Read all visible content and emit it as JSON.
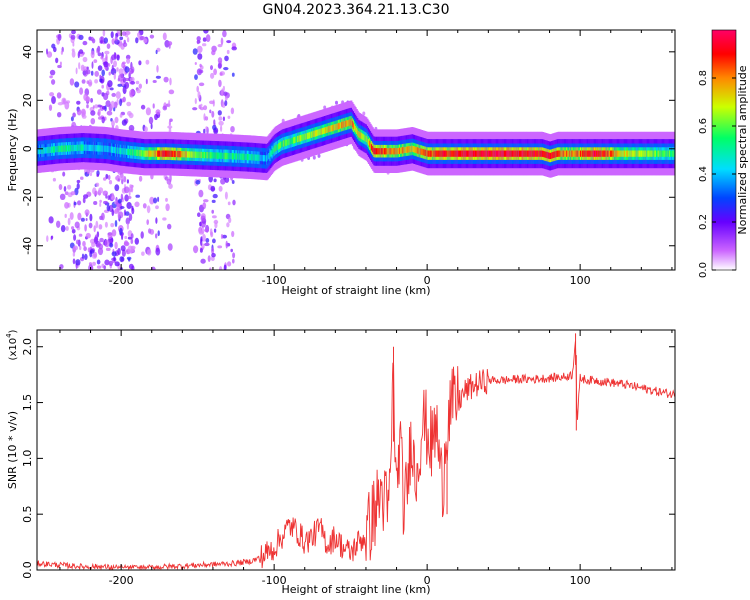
{
  "title": "GN04.2023.364.21.13.C30",
  "chart_data": [
    {
      "type": "heatmap",
      "xlabel": "Height of straight line (km)",
      "ylabel": "Frequency (Hz)",
      "xlim": [
        -255,
        162
      ],
      "ylim": [
        -50,
        49
      ],
      "xticks": [
        -200,
        -100,
        0,
        100
      ],
      "xtick_labels": [
        "-200",
        "-100",
        "0",
        "100"
      ],
      "yticks": [
        -40,
        -20,
        0,
        20,
        40
      ],
      "ytick_labels": [
        "-40",
        "-20",
        "0",
        "20",
        "40"
      ],
      "colorbar": {
        "label": "Normalized spectral amplitude",
        "range": [
          0,
          1
        ],
        "ticks": [
          0.0,
          0.2,
          0.4,
          0.6,
          0.8
        ],
        "tick_labels": [
          "0.0",
          "0.2",
          "0.4",
          "0.6",
          "0.8"
        ],
        "colors": [
          "#ffffff",
          "#cc66ff",
          "#6600ff",
          "#0044ff",
          "#00ddff",
          "#00ff66",
          "#ccff00",
          "#ff8800",
          "#ff0000",
          "#ff0066"
        ]
      },
      "ridge": {
        "x": [
          -255,
          -240,
          -225,
          -210,
          -200,
          -185,
          -170,
          -150,
          -130,
          -115,
          -105,
          -100,
          -95,
          -90,
          -80,
          -70,
          -60,
          -50,
          -45,
          -40,
          -35,
          -30,
          -20,
          -10,
          0,
          10,
          30,
          60,
          75,
          80,
          85,
          95,
          110,
          130,
          162
        ],
        "f": [
          -1,
          0,
          0.5,
          0,
          -1,
          -2,
          -2,
          -2.5,
          -3,
          -3.5,
          -4,
          0,
          2,
          3,
          5,
          7,
          9,
          11,
          6,
          4,
          -1,
          -1,
          -1,
          0,
          -2,
          -2,
          -2,
          -2,
          -2,
          -3,
          -2,
          -2,
          -2,
          -2,
          -2
        ],
        "amplitude": [
          0.4,
          0.55,
          0.45,
          0.4,
          0.45,
          0.65,
          0.95,
          0.6,
          0.55,
          0.5,
          0.4,
          0.55,
          0.6,
          0.6,
          0.65,
          0.7,
          0.75,
          0.8,
          0.7,
          0.65,
          0.95,
          0.85,
          0.8,
          0.75,
          0.85,
          0.9,
          0.95,
          0.95,
          0.9,
          0.95,
          0.85,
          0.8,
          0.95,
          0.7,
          0.55
        ]
      }
    },
    {
      "type": "line",
      "xlabel": "Height of straight line (km)",
      "ylabel": "SNR (10 * v/v)",
      "scale_label": "(x10",
      "scale_exp": "4",
      "xlim": [
        -255,
        162
      ],
      "ylim": [
        0,
        2.15
      ],
      "xticks": [
        -200,
        -100,
        0,
        100
      ],
      "xtick_labels": [
        "-200",
        "-100",
        "0",
        "100"
      ],
      "yticks": [
        0,
        0.5,
        1.0,
        1.5,
        2.0
      ],
      "ytick_labels": [
        "0.0",
        "0.5",
        "1.0",
        "1.5",
        "2.0"
      ],
      "color": "#ee3333",
      "series": [
        {
          "x": [
            -255,
            -245,
            -235,
            -225,
            -215,
            -200,
            -185,
            -170,
            -155,
            -140,
            -125,
            -115,
            -108,
            -100,
            -95,
            -90,
            -85,
            -80,
            -75,
            -70,
            -65,
            -60,
            -55,
            -50,
            -45,
            -40,
            -35,
            -30,
            -25,
            -22,
            -20,
            -18,
            -15,
            -12,
            -10,
            -8,
            -5,
            -3,
            0,
            3,
            6,
            10,
            12,
            15,
            20,
            25,
            30,
            40,
            50,
            60,
            70,
            80,
            90,
            95,
            97,
            98,
            100,
            105,
            110,
            120,
            130,
            140,
            150,
            162
          ],
          "y": [
            0.06,
            0.05,
            0.04,
            0.03,
            0.03,
            0.02,
            0.02,
            0.03,
            0.04,
            0.05,
            0.06,
            0.08,
            0.12,
            0.2,
            0.3,
            0.4,
            0.35,
            0.25,
            0.3,
            0.38,
            0.22,
            0.3,
            0.2,
            0.15,
            0.25,
            0.3,
            0.5,
            0.7,
            0.5,
            1.8,
            0.6,
            1.2,
            0.5,
            0.9,
            1.3,
            0.8,
            1.1,
            1.35,
            1.25,
            1.1,
            1.3,
            0.7,
            1.2,
            1.45,
            1.5,
            1.6,
            1.65,
            1.7,
            1.7,
            1.71,
            1.71,
            1.72,
            1.73,
            1.75,
            2.1,
            1.3,
            1.72,
            1.7,
            1.7,
            1.68,
            1.66,
            1.63,
            1.6,
            1.57
          ]
        }
      ]
    }
  ]
}
